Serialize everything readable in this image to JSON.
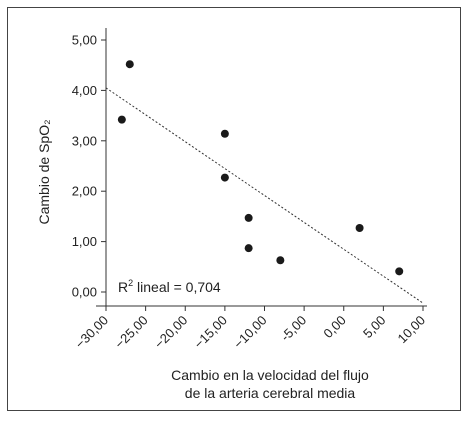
{
  "chart_data": {
    "type": "scatter",
    "title": "",
    "xlabel_lines": [
      "Cambio en la velocidad del flujo",
      "de la arteria cerebral media"
    ],
    "ylabel": "Cambio de SpO₂",
    "xlim": [
      -30,
      10
    ],
    "ylim": [
      0,
      5
    ],
    "x_ticks": [
      -30,
      -25,
      -20,
      -15,
      -10,
      -5,
      0,
      5,
      10
    ],
    "x_tick_labels": [
      "−30,00",
      "−25,00",
      "−20,00",
      "−15,00",
      "−10,00",
      "-5,00",
      "0,00",
      "5,00",
      "10,00"
    ],
    "y_ticks": [
      0,
      1,
      2,
      3,
      4,
      5
    ],
    "y_tick_labels": [
      "0,00",
      "1,00",
      "2,00",
      "3,00",
      "4,00",
      "5,00"
    ],
    "points": [
      {
        "x": -27.0,
        "y": 4.52
      },
      {
        "x": -28.0,
        "y": 3.42
      },
      {
        "x": -15.0,
        "y": 3.14
      },
      {
        "x": -15.0,
        "y": 2.27
      },
      {
        "x": -12.0,
        "y": 1.47
      },
      {
        "x": -12.0,
        "y": 0.87
      },
      {
        "x": -8.0,
        "y": 0.63
      },
      {
        "x": 2.0,
        "y": 1.27
      },
      {
        "x": 7.0,
        "y": 0.41
      }
    ],
    "fit_line": {
      "x1": -30,
      "y1": 4.05,
      "x2": 10,
      "y2": -0.22,
      "style": "dotted"
    },
    "annotation": {
      "prefix": "R",
      "sup": "2",
      "text": " lineal = 0,704"
    },
    "colors": {
      "point": "#1a1a1a",
      "axis": "#333333",
      "fit": "#333333"
    },
    "grid": false,
    "legend": "none"
  }
}
